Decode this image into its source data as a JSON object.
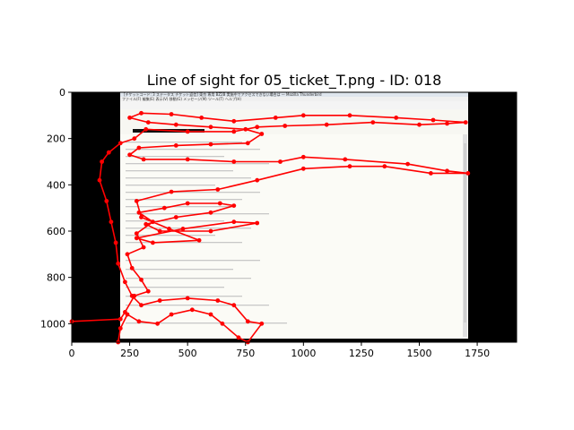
{
  "chart_data": {
    "type": "scatter",
    "title": "Line of sight for 05_ticket_T.png - ID: 018",
    "xlabel": "",
    "ylabel": "",
    "xlim": [
      0,
      1920
    ],
    "ylim": [
      1080,
      0
    ],
    "y_inverted": true,
    "x_ticks": [
      0,
      250,
      500,
      750,
      1000,
      1250,
      1500,
      1750
    ],
    "y_ticks": [
      0,
      200,
      400,
      600,
      800,
      1000
    ],
    "grid": false,
    "series_color": "#ff0000",
    "background_image": {
      "x_range": [
        210,
        1720
      ],
      "y_range": [
        0,
        1040
      ],
      "window_title": "[チケットコード: 3 ステータス チケット返信] 東京 専用 BZ2B 実施中でアクセスできない場合は — Mozilla Thunderbird",
      "menu_text": "ファイル(F)  編集(E)  表示(V)  移動(G)  メッセージ(M)  ツール(T)  ヘルプ(H)"
    },
    "points": [
      [
        0,
        990
      ],
      [
        210,
        980
      ],
      [
        230,
        950
      ],
      [
        270,
        880
      ],
      [
        330,
        860
      ],
      [
        300,
        810
      ],
      [
        260,
        760
      ],
      [
        240,
        700
      ],
      [
        310,
        670
      ],
      [
        280,
        610
      ],
      [
        350,
        560
      ],
      [
        290,
        520
      ],
      [
        400,
        500
      ],
      [
        500,
        480
      ],
      [
        640,
        480
      ],
      [
        700,
        490
      ],
      [
        600,
        520
      ],
      [
        450,
        540
      ],
      [
        320,
        570
      ],
      [
        380,
        600
      ],
      [
        600,
        600
      ],
      [
        800,
        565
      ],
      [
        700,
        560
      ],
      [
        480,
        590
      ],
      [
        280,
        630
      ],
      [
        350,
        650
      ],
      [
        550,
        640
      ],
      [
        420,
        590
      ],
      [
        300,
        540
      ],
      [
        280,
        470
      ],
      [
        430,
        430
      ],
      [
        630,
        420
      ],
      [
        800,
        380
      ],
      [
        1000,
        330
      ],
      [
        1200,
        320
      ],
      [
        1350,
        320
      ],
      [
        1550,
        350
      ],
      [
        1710,
        350
      ],
      [
        1620,
        340
      ],
      [
        1450,
        310
      ],
      [
        1180,
        290
      ],
      [
        1000,
        280
      ],
      [
        900,
        300
      ],
      [
        700,
        300
      ],
      [
        500,
        290
      ],
      [
        310,
        290
      ],
      [
        250,
        270
      ],
      [
        290,
        240
      ],
      [
        450,
        230
      ],
      [
        600,
        225
      ],
      [
        760,
        220
      ],
      [
        820,
        180
      ],
      [
        750,
        160
      ],
      [
        600,
        150
      ],
      [
        450,
        140
      ],
      [
        330,
        130
      ],
      [
        250,
        110
      ],
      [
        300,
        90
      ],
      [
        430,
        95
      ],
      [
        560,
        110
      ],
      [
        700,
        125
      ],
      [
        880,
        110
      ],
      [
        1000,
        100
      ],
      [
        1200,
        100
      ],
      [
        1400,
        110
      ],
      [
        1560,
        120
      ],
      [
        1700,
        130
      ],
      [
        1620,
        135
      ],
      [
        1500,
        140
      ],
      [
        1300,
        130
      ],
      [
        1100,
        140
      ],
      [
        920,
        145
      ],
      [
        800,
        150
      ],
      [
        700,
        170
      ],
      [
        500,
        170
      ],
      [
        320,
        160
      ],
      [
        270,
        200
      ],
      [
        210,
        220
      ],
      [
        160,
        260
      ],
      [
        130,
        300
      ],
      [
        120,
        380
      ],
      [
        150,
        470
      ],
      [
        170,
        560
      ],
      [
        190,
        650
      ],
      [
        200,
        740
      ],
      [
        230,
        820
      ],
      [
        260,
        880
      ],
      [
        300,
        920
      ],
      [
        380,
        900
      ],
      [
        500,
        890
      ],
      [
        630,
        900
      ],
      [
        700,
        920
      ],
      [
        760,
        990
      ],
      [
        820,
        1000
      ],
      [
        760,
        1080
      ],
      [
        720,
        1060
      ],
      [
        650,
        1000
      ],
      [
        600,
        960
      ],
      [
        520,
        940
      ],
      [
        430,
        960
      ],
      [
        370,
        1000
      ],
      [
        290,
        990
      ],
      [
        240,
        960
      ],
      [
        210,
        1020
      ],
      [
        200,
        1080
      ]
    ]
  }
}
